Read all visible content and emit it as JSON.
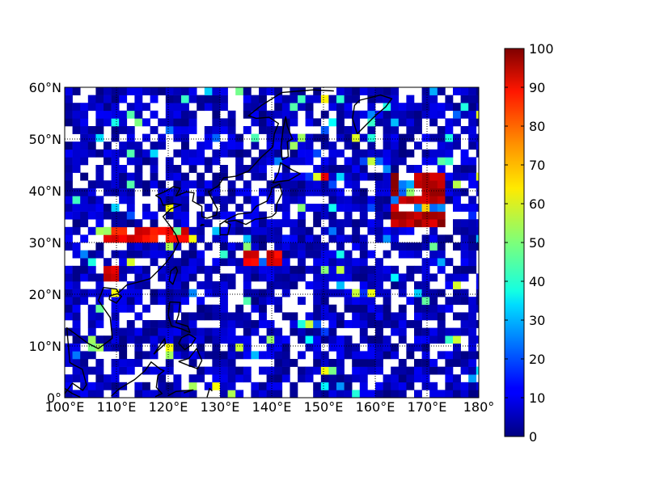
{
  "chart_data": {
    "type": "heatmap",
    "title": "",
    "xlabel": "",
    "ylabel": "",
    "x_range": [
      100,
      180
    ],
    "y_range": [
      0,
      60
    ],
    "x_ticks": [
      100,
      110,
      120,
      130,
      140,
      150,
      160,
      170,
      180
    ],
    "y_ticks": [
      0,
      10,
      20,
      30,
      40,
      50,
      60
    ],
    "x_tick_labels": [
      "100°E",
      "110°E",
      "120°E",
      "130°E",
      "140°E",
      "150°E",
      "160°E",
      "170°E",
      "180°"
    ],
    "y_tick_labels": [
      "0°",
      "10°N",
      "20°N",
      "30°N",
      "40°N",
      "50°N",
      "60°N"
    ],
    "grid": "dotted meridians and parallels every 10°",
    "colormap": "jet",
    "colorbar": {
      "range": [
        0,
        100
      ],
      "ticks": [
        0,
        10,
        20,
        30,
        40,
        50,
        60,
        70,
        80,
        90,
        100
      ],
      "tick_labels": [
        "0",
        "10",
        "20",
        "30",
        "40",
        "50",
        "60",
        "70",
        "80",
        "90",
        "100"
      ]
    },
    "cell_size_deg": 1.5,
    "missing_value": "white (no data)",
    "background_level_range": [
      0,
      12
    ],
    "high_value_regions": [
      {
        "lon": [
          163,
          174
        ],
        "lat": [
          33,
          44
        ],
        "value": 95
      },
      {
        "lon": [
          108,
          124
        ],
        "lat": [
          30,
          33
        ],
        "value": 88
      },
      {
        "lon": [
          134,
          142
        ],
        "lat": [
          25,
          29
        ],
        "value": 90
      },
      {
        "lon": [
          148,
          151
        ],
        "lat": [
          42,
          44
        ],
        "value": 85
      },
      {
        "lon": [
          107,
          111
        ],
        "lat": [
          23,
          26
        ],
        "value": 90
      }
    ],
    "coastlines": "black outlines of East Asia and western Pacific islands"
  }
}
